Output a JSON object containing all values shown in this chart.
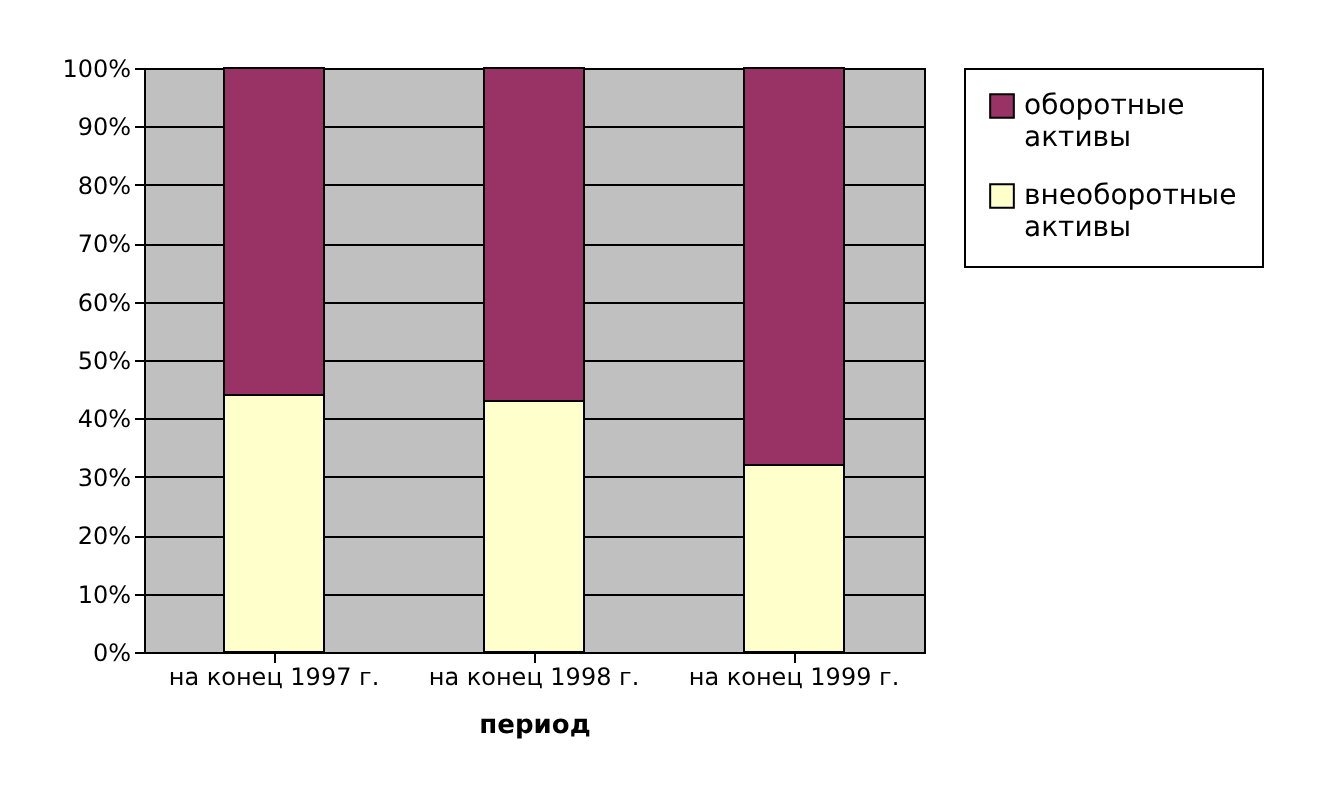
{
  "chart_data": {
    "type": "bar",
    "stacked": true,
    "xlabel": "период",
    "categories": [
      "на конец 1997 г.",
      "на конец 1998 г.",
      "на конец 1999 г."
    ],
    "series": [
      {
        "name": "внеоборотные активы",
        "color": "#ffffcc",
        "values": [
          44,
          43,
          32
        ]
      },
      {
        "name": "оборотные активы",
        "color": "#993366",
        "values": [
          56,
          57,
          68
        ]
      }
    ],
    "ylim": [
      0,
      100
    ],
    "yticks": [
      {
        "value": 0,
        "label": "0%"
      },
      {
        "value": 10,
        "label": "10%"
      },
      {
        "value": 20,
        "label": "20%"
      },
      {
        "value": 30,
        "label": "30%"
      },
      {
        "value": 40,
        "label": "40%"
      },
      {
        "value": 50,
        "label": "50%"
      },
      {
        "value": 60,
        "label": "60%"
      },
      {
        "value": 70,
        "label": "70%"
      },
      {
        "value": 80,
        "label": "80%"
      },
      {
        "value": 90,
        "label": "90%"
      },
      {
        "value": 100,
        "label": "100%"
      }
    ],
    "grid": "y",
    "legend": "right"
  }
}
